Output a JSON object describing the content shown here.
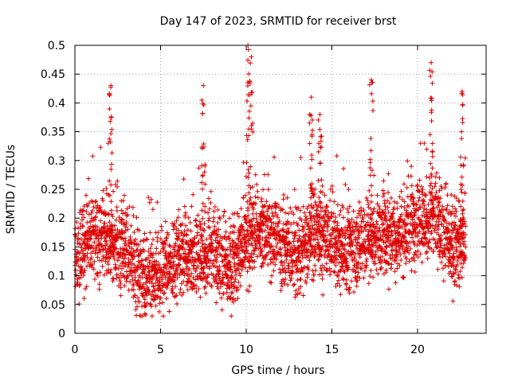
{
  "chart_data": {
    "type": "scatter",
    "title": "Day 147 of 2023, SRMTID for receiver brst",
    "xlabel": "GPS time / hours",
    "ylabel": "SRMTID / TECUs",
    "xlim": [
      0,
      24
    ],
    "ylim": [
      0,
      0.5
    ],
    "x_ticks": [
      0,
      5,
      10,
      15,
      20
    ],
    "y_ticks": [
      0,
      0.05,
      0.1,
      0.15,
      0.2,
      0.25,
      0.3,
      0.35,
      0.4,
      0.45,
      0.5
    ],
    "x_tick_labels": [
      "0",
      "5",
      "10",
      "15",
      "20"
    ],
    "y_tick_labels": [
      "0",
      "0.05",
      "0.1",
      "0.15",
      "0.2",
      "0.25",
      "0.3",
      "0.35",
      "0.4",
      "0.45",
      "0.5"
    ],
    "grid": true,
    "marker": "+",
    "series_color": "#dd0000",
    "baseline": [
      [
        0,
        0.13
      ],
      [
        1,
        0.17
      ],
      [
        2,
        0.15
      ],
      [
        3,
        0.14
      ],
      [
        4,
        0.1
      ],
      [
        5,
        0.1
      ],
      [
        6,
        0.13
      ],
      [
        7,
        0.14
      ],
      [
        8,
        0.13
      ],
      [
        9,
        0.11
      ],
      [
        10,
        0.16
      ],
      [
        11,
        0.18
      ],
      [
        12,
        0.15
      ],
      [
        13,
        0.14
      ],
      [
        14,
        0.17
      ],
      [
        15,
        0.16
      ],
      [
        16,
        0.14
      ],
      [
        17,
        0.16
      ],
      [
        18,
        0.17
      ],
      [
        19,
        0.17
      ],
      [
        20,
        0.2
      ],
      [
        21,
        0.19
      ],
      [
        22,
        0.15
      ],
      [
        22.8,
        0.16
      ]
    ],
    "spikes": [
      [
        2.1,
        0.43
      ],
      [
        7.5,
        0.43
      ],
      [
        10.1,
        0.5
      ],
      [
        10.3,
        0.48
      ],
      [
        13.8,
        0.41
      ],
      [
        14.3,
        0.38
      ],
      [
        17.3,
        0.44
      ],
      [
        20.8,
        0.47
      ],
      [
        22.6,
        0.42
      ]
    ]
  }
}
